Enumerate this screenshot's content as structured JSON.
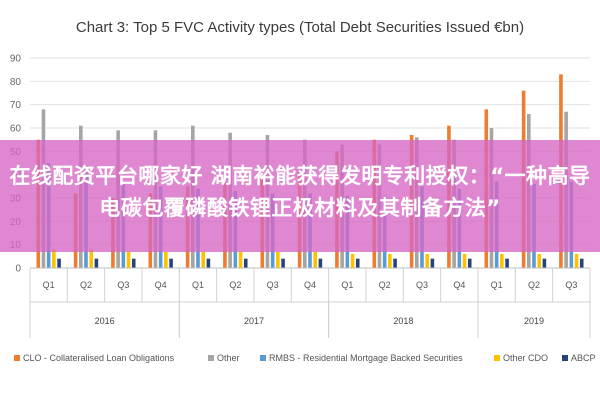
{
  "chart_data": {
    "type": "bar",
    "title": "Chart 3: Top 5 FVC Activity types (Total Debt Securities Issued €bn)",
    "ylim": [
      0,
      90
    ],
    "yticks": [
      0,
      10,
      20,
      30,
      40,
      50,
      60,
      70,
      80,
      90
    ],
    "grid": true,
    "legend_position": "bottom",
    "categories": [
      "Q1",
      "Q2",
      "Q3",
      "Q4",
      "Q1",
      "Q2",
      "Q3",
      "Q4",
      "Q1",
      "Q2",
      "Q3",
      "Q4",
      "Q1",
      "Q2",
      "Q3"
    ],
    "years": [
      {
        "label": "2016",
        "span": [
          0,
          3
        ]
      },
      {
        "label": "2017",
        "span": [
          4,
          7
        ]
      },
      {
        "label": "2018",
        "span": [
          8,
          11
        ]
      },
      {
        "label": "2019",
        "span": [
          12,
          14
        ]
      }
    ],
    "series": [
      {
        "name": "CLO - Collateralised Loan Obligations",
        "color": "#ed7d31",
        "values": [
          55,
          32,
          30,
          32,
          35,
          37,
          38,
          42,
          50,
          55,
          57,
          61,
          68,
          76,
          83
        ]
      },
      {
        "name": "Other",
        "color": "#a5a5a5",
        "values": [
          68,
          61,
          59,
          59,
          61,
          58,
          57,
          55,
          53,
          53,
          56,
          55,
          60,
          66,
          67
        ]
      },
      {
        "name": "RMBS - Residential Mortgage Backed Securities",
        "color": "#5b9bd5",
        "values": [
          45,
          44,
          36,
          35,
          34,
          33,
          32,
          32,
          31,
          31,
          35,
          34,
          37,
          36,
          37
        ]
      },
      {
        "name": "Other CDO",
        "color": "#ffc000",
        "values": [
          8,
          8,
          7,
          7,
          7,
          7,
          7,
          7,
          6,
          6,
          6,
          6,
          6,
          6,
          6
        ]
      },
      {
        "name": "ABCP",
        "color": "#264478",
        "values": [
          4,
          4,
          4,
          4,
          4,
          4,
          4,
          4,
          4,
          4,
          4,
          4,
          4,
          4,
          4
        ]
      }
    ]
  },
  "overlay": {
    "text": "在线配资平台哪家好 湖南裕能获得发明专利授权：“一种高导电碳包覆磷酸铁锂正极材料及其制备方法”"
  }
}
